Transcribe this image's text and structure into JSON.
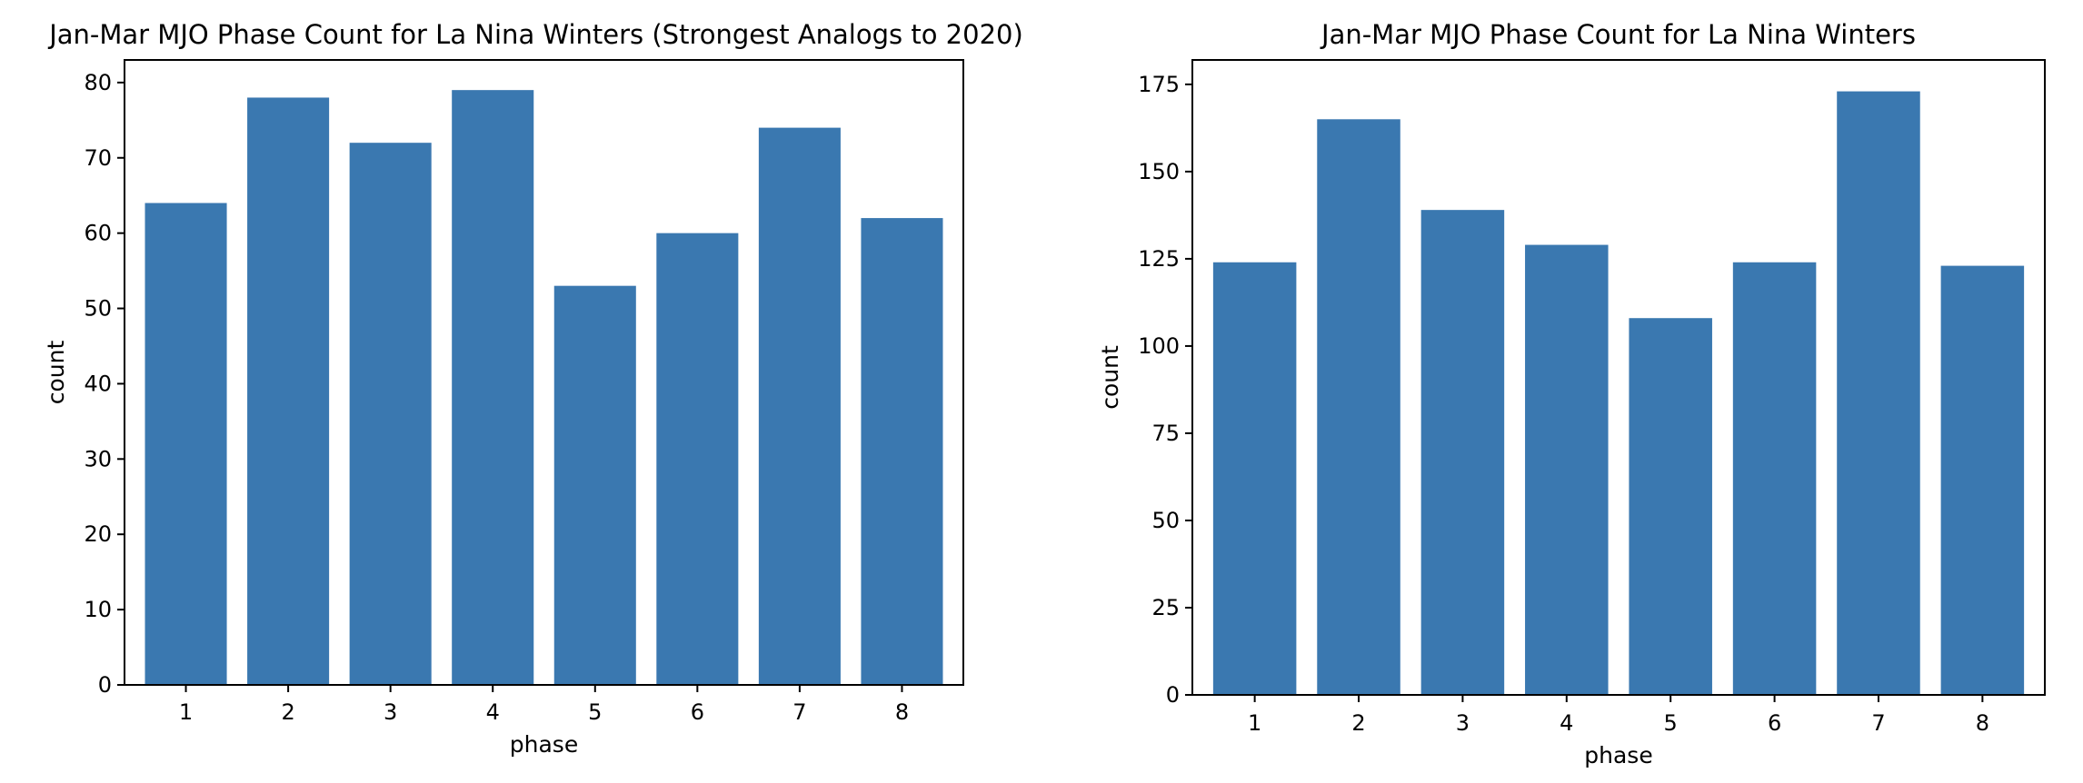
{
  "chart_data": [
    {
      "type": "bar",
      "title": "Jan-Mar MJO Phase Count for La Nina Winters (Strongest Analogs to 2020)",
      "xlabel": "phase",
      "ylabel": "count",
      "categories": [
        "1",
        "2",
        "3",
        "4",
        "5",
        "6",
        "7",
        "8"
      ],
      "values": [
        64,
        78,
        72,
        79,
        53,
        60,
        74,
        62
      ],
      "ylim": [
        0,
        83
      ],
      "yticks": [
        0,
        10,
        20,
        30,
        40,
        50,
        60,
        70,
        80
      ],
      "bar_color": "#3a78b0",
      "grid": false,
      "legend": "none"
    },
    {
      "type": "bar",
      "title": "Jan-Mar MJO Phase Count for La Nina Winters",
      "xlabel": "phase",
      "ylabel": "count",
      "categories": [
        "1",
        "2",
        "3",
        "4",
        "5",
        "6",
        "7",
        "8"
      ],
      "values": [
        124,
        165,
        139,
        129,
        108,
        124,
        173,
        123
      ],
      "ylim": [
        0,
        182
      ],
      "yticks": [
        0,
        25,
        50,
        75,
        100,
        125,
        150,
        175
      ],
      "bar_color": "#3a78b0",
      "grid": false,
      "legend": "none"
    }
  ]
}
